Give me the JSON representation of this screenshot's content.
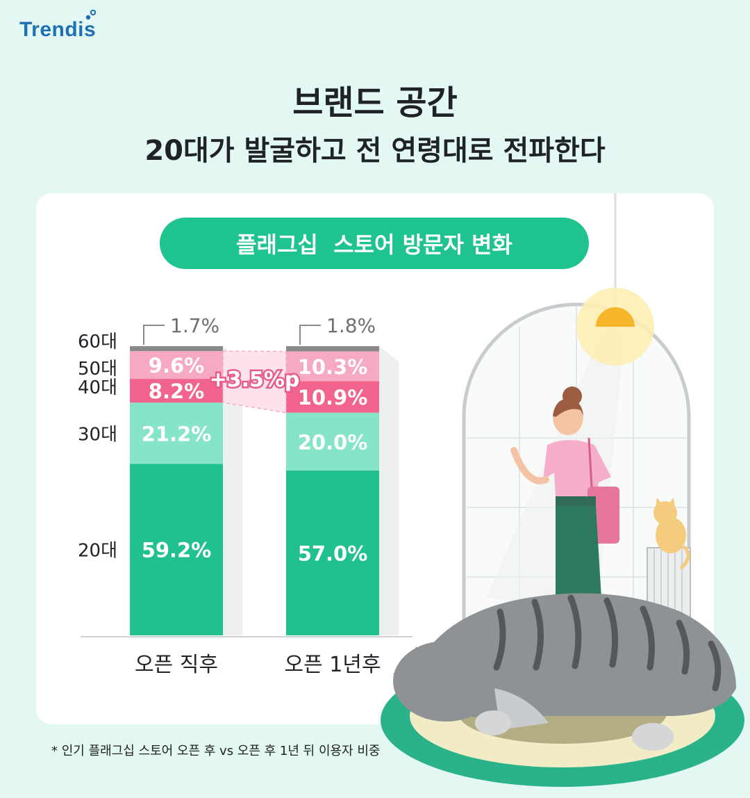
{
  "brand": {
    "logo_text": "Trendis"
  },
  "header": {
    "title_line1": "브랜드 공간",
    "title_line2": "20대가 발굴하고 전 연령대로 전파한다"
  },
  "chart_data": {
    "type": "bar",
    "stacked": true,
    "title": "플래그십  스토어 방문자 변화",
    "categories": [
      "오픈 직후",
      "오픈 1년후"
    ],
    "series": [
      {
        "name": "20대",
        "values": [
          59.2,
          57.0
        ],
        "labels": [
          "59.2%",
          "57.0%"
        ],
        "color": "#21c08f"
      },
      {
        "name": "30대",
        "values": [
          21.2,
          20.0
        ],
        "labels": [
          "21.2%",
          "20.0%"
        ],
        "color": "#86e4c9"
      },
      {
        "name": "40대",
        "values": [
          8.2,
          10.9
        ],
        "labels": [
          "8.2%",
          "10.9%"
        ],
        "color": "#f2648e"
      },
      {
        "name": "50대",
        "values": [
          9.6,
          10.3
        ],
        "labels": [
          "9.6%",
          "10.3%"
        ],
        "color": "#f7a8c2"
      },
      {
        "name": "60대",
        "values": [
          1.7,
          1.8
        ],
        "labels": [
          "1.7%",
          "1.8%"
        ],
        "color": "#8a8a8a"
      }
    ],
    "annotation": {
      "text": "+3.5%p",
      "between_series": [
        "40대",
        "50대"
      ]
    },
    "ylim": [
      0,
      100
    ],
    "grid": false
  },
  "footnote": "* 인기 플래그십 스토어 오픈 후 vs 오픈 후 1년 뒤 이용자 비중"
}
